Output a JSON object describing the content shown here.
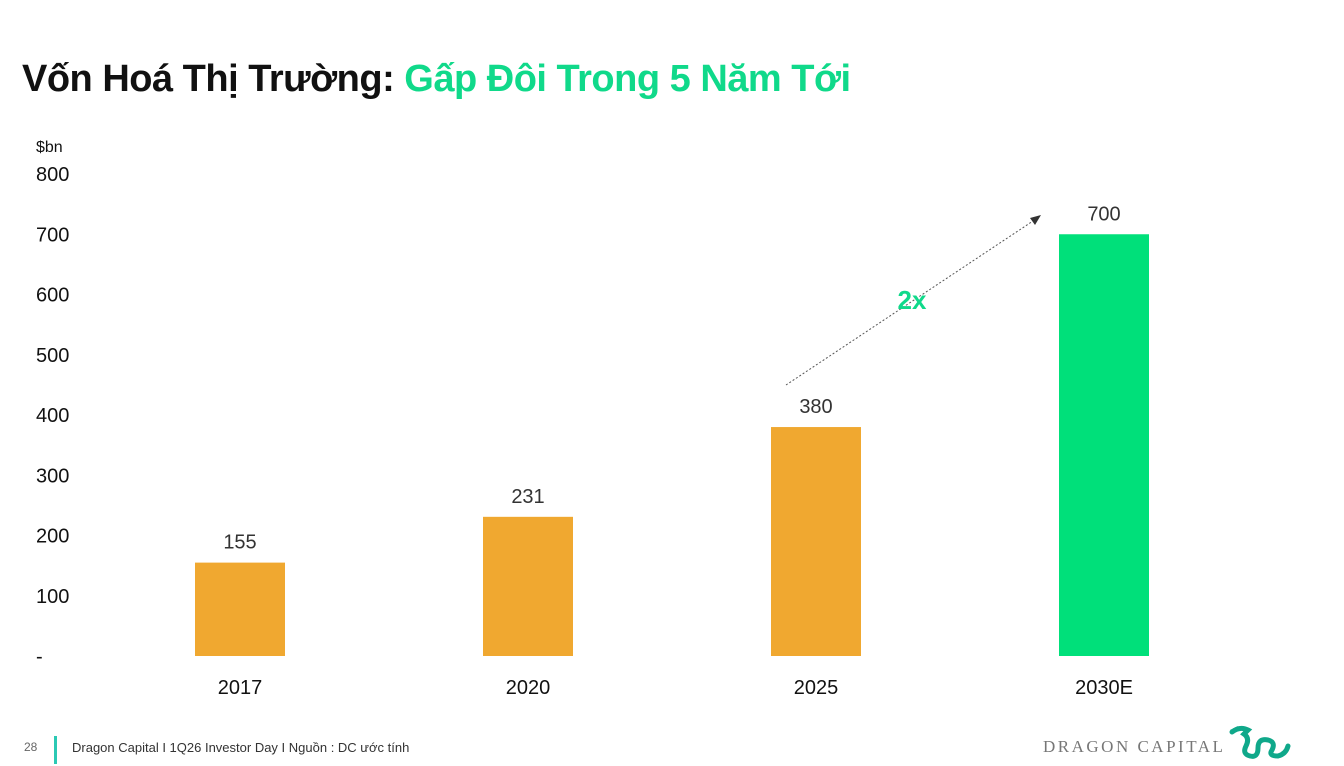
{
  "title": {
    "main": "Vốn Hoá Thị Trường:",
    "highlight": "Gấp Đôi Trong 5 Năm Tới"
  },
  "chart_data": {
    "type": "bar",
    "unit_label": "$bn",
    "categories": [
      "2017",
      "2020",
      "2025",
      "2030E"
    ],
    "values": [
      155,
      231,
      380,
      700
    ],
    "data_labels": [
      "155",
      "231",
      "380",
      "700"
    ],
    "ylim": [
      0,
      800
    ],
    "yticks": [
      0,
      100,
      200,
      300,
      400,
      500,
      600,
      700,
      800
    ],
    "ytick_labels": [
      "-",
      "100",
      "200",
      "300",
      "400",
      "500",
      "600",
      "700",
      "800"
    ],
    "grid": false,
    "bar_colors": [
      "#F0A830",
      "#F0A830",
      "#F0A830",
      "#00E07A"
    ],
    "annotation": {
      "text": "2x",
      "from": "2025",
      "to": "2030E",
      "color": "#10D98A"
    }
  },
  "footer": {
    "page_number": "28",
    "text": "Dragon Capital I 1Q26 Investor Day I Nguồn : DC ước tính"
  },
  "logo": {
    "text": "DRAGON CAPITAL",
    "icon": "dragon-icon",
    "color": "#0FA88A"
  }
}
